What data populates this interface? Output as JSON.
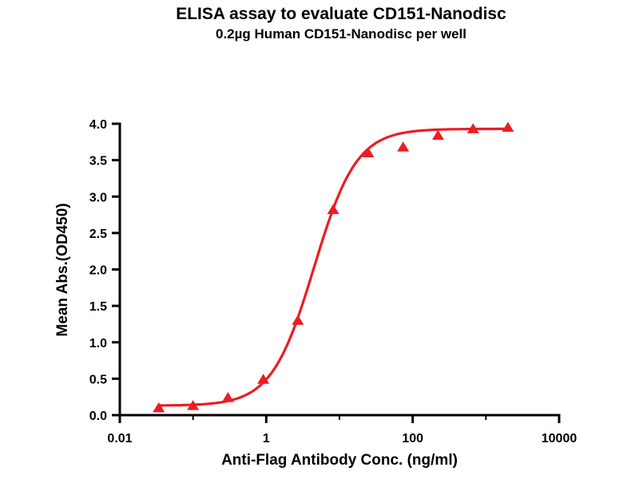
{
  "title": "ELISA assay to evaluate CD151-Nanodisc",
  "subtitle": "0.2µg Human CD151-Nanodisc per well",
  "chart_data": {
    "type": "scatter",
    "title": "ELISA assay to evaluate CD151-Nanodisc",
    "subtitle": "0.2µg Human CD151-Nanodisc per well",
    "xlabel": "Anti-Flag Antibody Conc. (ng/ml)",
    "ylabel": "Mean Abs.(OD450)",
    "x_scale": "log",
    "xlim": [
      0.01,
      10000
    ],
    "ylim": [
      0.0,
      4.0
    ],
    "grid": false,
    "legend": "none",
    "axis_color": "#000000",
    "text_color": "#000000",
    "x_ticks": [
      {
        "value": 0.01,
        "label": "0.01"
      },
      {
        "value": 1,
        "label": "1"
      },
      {
        "value": 100,
        "label": "100"
      },
      {
        "value": 10000,
        "label": "10000"
      }
    ],
    "x_minor_ticks": [
      0.1,
      10,
      1000
    ],
    "y_ticks": [
      {
        "value": 0.0,
        "label": "0.0"
      },
      {
        "value": 0.5,
        "label": "0.5"
      },
      {
        "value": 1.0,
        "label": "1.0"
      },
      {
        "value": 1.5,
        "label": "1.5"
      },
      {
        "value": 2.0,
        "label": "2.0"
      },
      {
        "value": 2.5,
        "label": "2.5"
      },
      {
        "value": 3.0,
        "label": "3.0"
      },
      {
        "value": 3.5,
        "label": "3.5"
      },
      {
        "value": 4.0,
        "label": "4.0"
      }
    ],
    "series": [
      {
        "name": "Human CD151-Nanodisc",
        "marker": "triangle-up",
        "color": "#ed1c24",
        "x": [
          0.034,
          0.1,
          0.3,
          0.91,
          2.7,
          8.2,
          24.7,
          74,
          222,
          667,
          2000
        ],
        "y": [
          0.1,
          0.13,
          0.24,
          0.49,
          1.3,
          2.82,
          3.6,
          3.68,
          3.84,
          3.93,
          3.95
        ]
      }
    ],
    "fit_curve": {
      "model": "4PL",
      "bottom": 0.13,
      "top": 3.93,
      "ec50": 4.5,
      "hill": 1.5
    }
  }
}
